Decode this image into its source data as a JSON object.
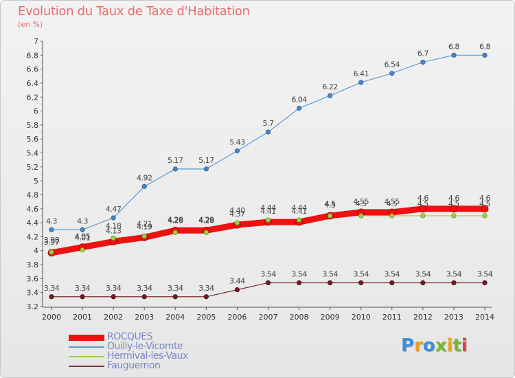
{
  "title": "Evolution du Taux de Taxe d'Habitation",
  "unit": "(en %)",
  "logo": {
    "text": "Proxiti",
    "colors": [
      "#3a8fd6",
      "#e8a020",
      "#3a8fd6",
      "#78b830",
      "#e8a020",
      "#78b830",
      "#e04040"
    ]
  },
  "chart_data": {
    "type": "line",
    "title": "Evolution du Taux de Taxe d'Habitation",
    "ylabel": "(en %)",
    "xlabel": "",
    "x": [
      2000,
      2001,
      2002,
      2003,
      2004,
      2005,
      2006,
      2007,
      2008,
      2009,
      2010,
      2011,
      2012,
      2013,
      2014
    ],
    "ylim": [
      3.2,
      7
    ],
    "yticks": [
      "3.2",
      "3.4",
      "3.6",
      "3.8",
      "4",
      "4.2",
      "4.4",
      "4.6",
      "4.8",
      "5",
      "5.2",
      "5.4",
      "5.6",
      "5.8",
      "6",
      "6.2",
      "6.4",
      "6.6",
      "6.8",
      "7"
    ],
    "grid": false,
    "legend_position": "bottom-left",
    "series": [
      {
        "name": "ROCQUES",
        "color": "#ee1111",
        "values": [
          3.97,
          4.05,
          4.13,
          4.19,
          4.29,
          4.29,
          4.37,
          4.41,
          4.41,
          4.5,
          4.55,
          4.55,
          4.6,
          4.6,
          4.6
        ],
        "labels": [
          "3.97",
          "4.05",
          "4.13",
          "4.19",
          "4.29",
          "4.29",
          "4.37",
          "4.41",
          "4.41",
          "4.5",
          "4.55",
          "4.55",
          "4.6",
          "4.6",
          "4.6"
        ]
      },
      {
        "name": "Ouilly-le-Vicomte",
        "color": "#5b9bd5",
        "values": [
          4.3,
          4.3,
          4.47,
          4.92,
          5.17,
          5.17,
          5.43,
          5.7,
          6.04,
          6.22,
          6.41,
          6.54,
          6.7,
          6.8,
          6.8
        ],
        "labels": [
          "4.3",
          "4.3",
          "4.47",
          "4.92",
          "5.17",
          "5.17",
          "5.43",
          "5.7",
          "6.04",
          "6.22",
          "6.41",
          "6.54",
          "6.7",
          "6.8",
          "6.8"
        ]
      },
      {
        "name": "Hermival-les-Vaux",
        "color": "#9bd44a",
        "values": [
          3.98,
          4.01,
          4.18,
          4.21,
          4.26,
          4.26,
          4.4,
          4.44,
          4.44,
          4.5,
          4.5,
          4.5,
          4.5,
          4.5,
          4.5
        ],
        "labels": [
          "3.98",
          "4.01",
          "4.18",
          "4.21",
          "4.26",
          "4.26",
          "4.40",
          "4.44",
          "4.44",
          "4.5",
          "4.5",
          "4.5",
          "4.5",
          "4.5",
          "4.5"
        ]
      },
      {
        "name": "Fauguernon",
        "color": "#7a2e36",
        "values": [
          3.34,
          3.34,
          3.34,
          3.34,
          3.34,
          3.34,
          3.44,
          3.54,
          3.54,
          3.54,
          3.54,
          3.54,
          3.54,
          3.54,
          3.54
        ],
        "labels": [
          "3.34",
          "3.34",
          "3.34",
          "3.34",
          "3.34",
          "3.34",
          "3.44",
          "3.54",
          "3.54",
          "3.54",
          "3.54",
          "3.54",
          "3.54",
          "3.54",
          "3.54"
        ]
      }
    ]
  }
}
